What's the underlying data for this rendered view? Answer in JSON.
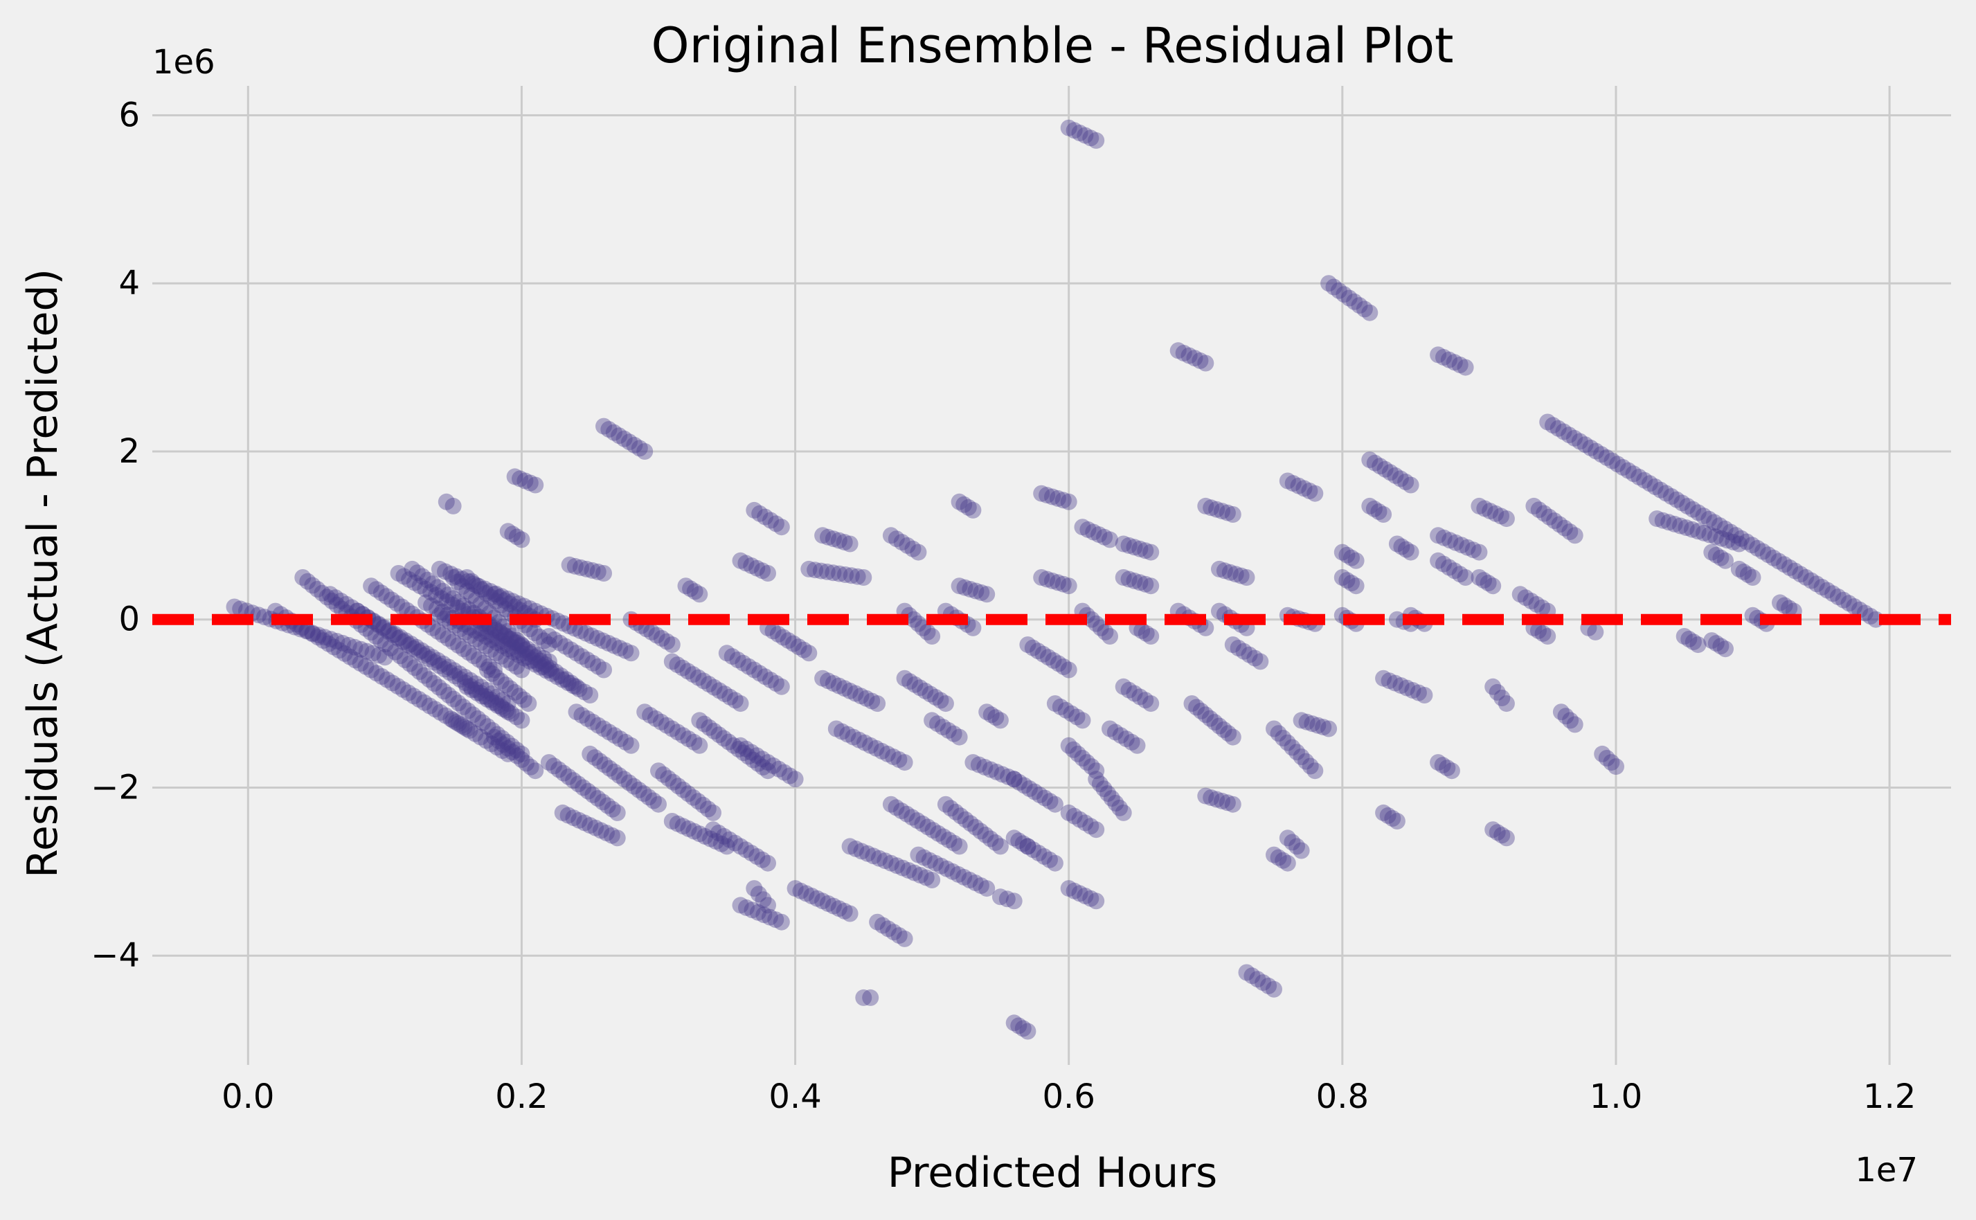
{
  "colors": {
    "background": "#f0f0f0",
    "grid": "#cbcbcb",
    "points": "#483d8b",
    "zero_line": "#ff0000"
  },
  "chart_data": {
    "type": "scatter",
    "title": "Original Ensemble - Residual Plot",
    "xlabel": "Predicted Hours",
    "ylabel": "Residuals (Actual - Predicted)",
    "x_offset_label": "1e7",
    "y_offset_label": "1e6",
    "x_scale": 10000000,
    "y_scale": 1000000,
    "xlim": [
      -0.07,
      1.245
    ],
    "ylim": [
      -5.3,
      6.35
    ],
    "x_ticks": [
      0.0,
      0.2,
      0.4,
      0.6,
      0.8,
      1.0,
      1.2
    ],
    "x_tick_labels": [
      "0.0",
      "0.2",
      "0.4",
      "0.6",
      "0.8",
      "1.0",
      "1.2"
    ],
    "y_ticks": [
      -4,
      -2,
      0,
      2,
      4,
      6
    ],
    "y_tick_labels": [
      "−4",
      "−2",
      "0",
      "2",
      "4",
      "6"
    ],
    "grid": true,
    "marker_alpha": 0.4,
    "reference_line": {
      "y": 0,
      "style": "dashed",
      "color": "#ff0000"
    },
    "series": [
      {
        "color": "#483d8b",
        "segments": [
          [
            -0.01,
            0.15,
            0.1,
            -0.45
          ],
          [
            0.02,
            0.1,
            0.16,
            -1.3
          ],
          [
            0.04,
            0.5,
            0.2,
            -1.6
          ],
          [
            0.06,
            0.3,
            0.19,
            -1.0
          ],
          [
            0.08,
            0.1,
            0.2,
            -1.2
          ],
          [
            0.09,
            0.4,
            0.18,
            -0.6
          ],
          [
            0.11,
            0.55,
            0.22,
            -0.5
          ],
          [
            0.12,
            0.6,
            0.24,
            -0.8
          ],
          [
            0.13,
            0.2,
            0.25,
            -0.9
          ],
          [
            0.14,
            0.6,
            0.28,
            -0.4
          ],
          [
            0.14,
            0.05,
            0.2,
            -0.6
          ],
          [
            0.15,
            0.5,
            0.2,
            -0.3
          ],
          [
            0.16,
            0.5,
            0.22,
            -0.3
          ],
          [
            0.17,
            -0.1,
            0.22,
            -0.6
          ],
          [
            0.15,
            -1.2,
            0.19,
            -1.6
          ],
          [
            0.16,
            -0.8,
            0.19,
            -1.1
          ],
          [
            0.18,
            -1.4,
            0.21,
            -1.8
          ],
          [
            0.175,
            -0.6,
            0.205,
            -1.0
          ],
          [
            0.18,
            0.3,
            0.21,
            0.0
          ],
          [
            0.19,
            1.05,
            0.2,
            0.95
          ],
          [
            0.145,
            1.4,
            0.15,
            1.35
          ],
          [
            0.195,
            1.7,
            0.21,
            1.6
          ],
          [
            0.22,
            -0.2,
            0.26,
            -0.6
          ],
          [
            0.22,
            -1.7,
            0.27,
            -2.3
          ],
          [
            0.23,
            -2.3,
            0.27,
            -2.6
          ],
          [
            0.235,
            0.65,
            0.26,
            0.55
          ],
          [
            0.24,
            -1.1,
            0.28,
            -1.5
          ],
          [
            0.25,
            -1.6,
            0.3,
            -2.2
          ],
          [
            0.26,
            2.3,
            0.29,
            2.0
          ],
          [
            0.28,
            0.0,
            0.31,
            -0.3
          ],
          [
            0.29,
            -1.1,
            0.33,
            -1.5
          ],
          [
            0.3,
            -1.8,
            0.34,
            -2.3
          ],
          [
            0.31,
            -2.4,
            0.35,
            -2.7
          ],
          [
            0.31,
            -0.5,
            0.36,
            -1.0
          ],
          [
            0.32,
            0.4,
            0.33,
            0.3
          ],
          [
            0.33,
            -1.2,
            0.38,
            -1.8
          ],
          [
            0.34,
            -2.5,
            0.38,
            -2.9
          ],
          [
            0.35,
            -0.4,
            0.39,
            -0.8
          ],
          [
            0.36,
            0.7,
            0.38,
            0.55
          ],
          [
            0.37,
            1.3,
            0.39,
            1.1
          ],
          [
            0.36,
            -1.5,
            0.4,
            -1.9
          ],
          [
            0.36,
            -3.4,
            0.39,
            -3.6
          ],
          [
            0.37,
            -3.2,
            0.38,
            -3.4
          ],
          [
            0.38,
            -0.1,
            0.41,
            -0.4
          ],
          [
            0.4,
            -3.2,
            0.44,
            -3.5
          ],
          [
            0.41,
            0.6,
            0.45,
            0.5
          ],
          [
            0.42,
            -0.7,
            0.46,
            -1.0
          ],
          [
            0.42,
            1.0,
            0.44,
            0.9
          ],
          [
            0.43,
            -1.3,
            0.48,
            -1.7
          ],
          [
            0.44,
            -2.7,
            0.5,
            -3.1
          ],
          [
            0.45,
            -4.5,
            0.455,
            -4.5
          ],
          [
            0.46,
            -3.6,
            0.48,
            -3.8
          ],
          [
            0.47,
            1.0,
            0.49,
            0.8
          ],
          [
            0.47,
            -2.2,
            0.52,
            -2.7
          ],
          [
            0.48,
            0.1,
            0.5,
            -0.2
          ],
          [
            0.48,
            -0.7,
            0.51,
            -1.0
          ],
          [
            0.49,
            -2.8,
            0.54,
            -3.2
          ],
          [
            0.5,
            -1.2,
            0.52,
            -1.4
          ],
          [
            0.51,
            0.1,
            0.53,
            -0.1
          ],
          [
            0.51,
            -2.2,
            0.55,
            -2.7
          ],
          [
            0.52,
            1.4,
            0.53,
            1.3
          ],
          [
            0.52,
            0.4,
            0.54,
            0.3
          ],
          [
            0.53,
            -1.7,
            0.56,
            -1.9
          ],
          [
            0.54,
            -1.1,
            0.55,
            -1.2
          ],
          [
            0.55,
            -3.3,
            0.56,
            -3.35
          ],
          [
            0.56,
            -2.6,
            0.57,
            -2.7
          ],
          [
            0.56,
            -1.9,
            0.59,
            -2.2
          ],
          [
            0.56,
            -4.8,
            0.57,
            -4.9
          ],
          [
            0.57,
            -0.3,
            0.6,
            -0.6
          ],
          [
            0.57,
            -2.7,
            0.59,
            -2.9
          ],
          [
            0.58,
            0.5,
            0.6,
            0.4
          ],
          [
            0.58,
            1.5,
            0.6,
            1.4
          ],
          [
            0.59,
            -1.0,
            0.61,
            -1.2
          ],
          [
            0.6,
            -1.5,
            0.62,
            -1.8
          ],
          [
            0.6,
            -2.3,
            0.62,
            -2.5
          ],
          [
            0.6,
            -3.2,
            0.62,
            -3.35
          ],
          [
            0.6,
            5.85,
            0.62,
            5.7
          ],
          [
            0.61,
            0.1,
            0.63,
            -0.2
          ],
          [
            0.61,
            1.1,
            0.63,
            0.95
          ],
          [
            0.62,
            -1.9,
            0.64,
            -2.3
          ],
          [
            0.63,
            -1.3,
            0.65,
            -1.5
          ],
          [
            0.64,
            0.5,
            0.66,
            0.4
          ],
          [
            0.64,
            0.9,
            0.66,
            0.8
          ],
          [
            0.64,
            -0.8,
            0.66,
            -1.0
          ],
          [
            0.65,
            -0.1,
            0.66,
            -0.2
          ],
          [
            0.68,
            3.2,
            0.7,
            3.05
          ],
          [
            0.68,
            0.1,
            0.7,
            -0.1
          ],
          [
            0.69,
            -1.0,
            0.72,
            -1.4
          ],
          [
            0.7,
            1.35,
            0.72,
            1.25
          ],
          [
            0.7,
            -2.1,
            0.72,
            -2.2
          ],
          [
            0.71,
            0.6,
            0.73,
            0.5
          ],
          [
            0.71,
            0.1,
            0.73,
            -0.1
          ],
          [
            0.72,
            -0.3,
            0.74,
            -0.5
          ],
          [
            0.73,
            -4.2,
            0.75,
            -4.4
          ],
          [
            0.75,
            -1.3,
            0.78,
            -1.8
          ],
          [
            0.76,
            1.65,
            0.78,
            1.5
          ],
          [
            0.76,
            0.05,
            0.78,
            -0.05
          ],
          [
            0.76,
            -2.6,
            0.77,
            -2.75
          ],
          [
            0.77,
            -1.2,
            0.79,
            -1.3
          ],
          [
            0.75,
            -2.8,
            0.76,
            -2.9
          ],
          [
            0.79,
            4.0,
            0.82,
            3.65
          ],
          [
            0.8,
            0.8,
            0.81,
            0.7
          ],
          [
            0.8,
            0.5,
            0.81,
            0.4
          ],
          [
            0.8,
            0.05,
            0.81,
            -0.05
          ],
          [
            0.82,
            1.9,
            0.85,
            1.6
          ],
          [
            0.82,
            1.35,
            0.83,
            1.25
          ],
          [
            0.83,
            -0.7,
            0.86,
            -0.9
          ],
          [
            0.83,
            -2.3,
            0.84,
            -2.4
          ],
          [
            0.84,
            0.0,
            0.85,
            -0.05
          ],
          [
            0.84,
            0.9,
            0.85,
            0.8
          ],
          [
            0.85,
            0.05,
            0.86,
            -0.05
          ],
          [
            0.87,
            3.15,
            0.89,
            3.0
          ],
          [
            0.87,
            0.7,
            0.89,
            0.5
          ],
          [
            0.87,
            1.0,
            0.9,
            0.8
          ],
          [
            0.87,
            -1.7,
            0.88,
            -1.8
          ],
          [
            0.9,
            1.35,
            0.92,
            1.2
          ],
          [
            0.9,
            0.5,
            0.91,
            0.4
          ],
          [
            0.91,
            -0.8,
            0.92,
            -1.0
          ],
          [
            0.91,
            -2.5,
            0.92,
            -2.6
          ],
          [
            0.93,
            0.3,
            0.95,
            0.1
          ],
          [
            0.94,
            1.35,
            0.97,
            1.0
          ],
          [
            0.94,
            -0.1,
            0.95,
            -0.2
          ],
          [
            0.95,
            2.35,
            1.19,
            0.0
          ],
          [
            0.96,
            -1.1,
            0.97,
            -1.25
          ],
          [
            0.98,
            -0.1,
            0.985,
            -0.15
          ],
          [
            0.99,
            -1.6,
            1.0,
            -1.75
          ],
          [
            1.03,
            1.2,
            1.09,
            0.9
          ],
          [
            1.05,
            -0.2,
            1.06,
            -0.3
          ],
          [
            1.07,
            0.8,
            1.08,
            0.7
          ],
          [
            1.07,
            -0.25,
            1.08,
            -0.35
          ],
          [
            1.09,
            0.6,
            1.1,
            0.5
          ],
          [
            1.1,
            0.05,
            1.11,
            -0.05
          ],
          [
            1.12,
            0.2,
            1.13,
            0.1
          ]
        ]
      }
    ]
  }
}
